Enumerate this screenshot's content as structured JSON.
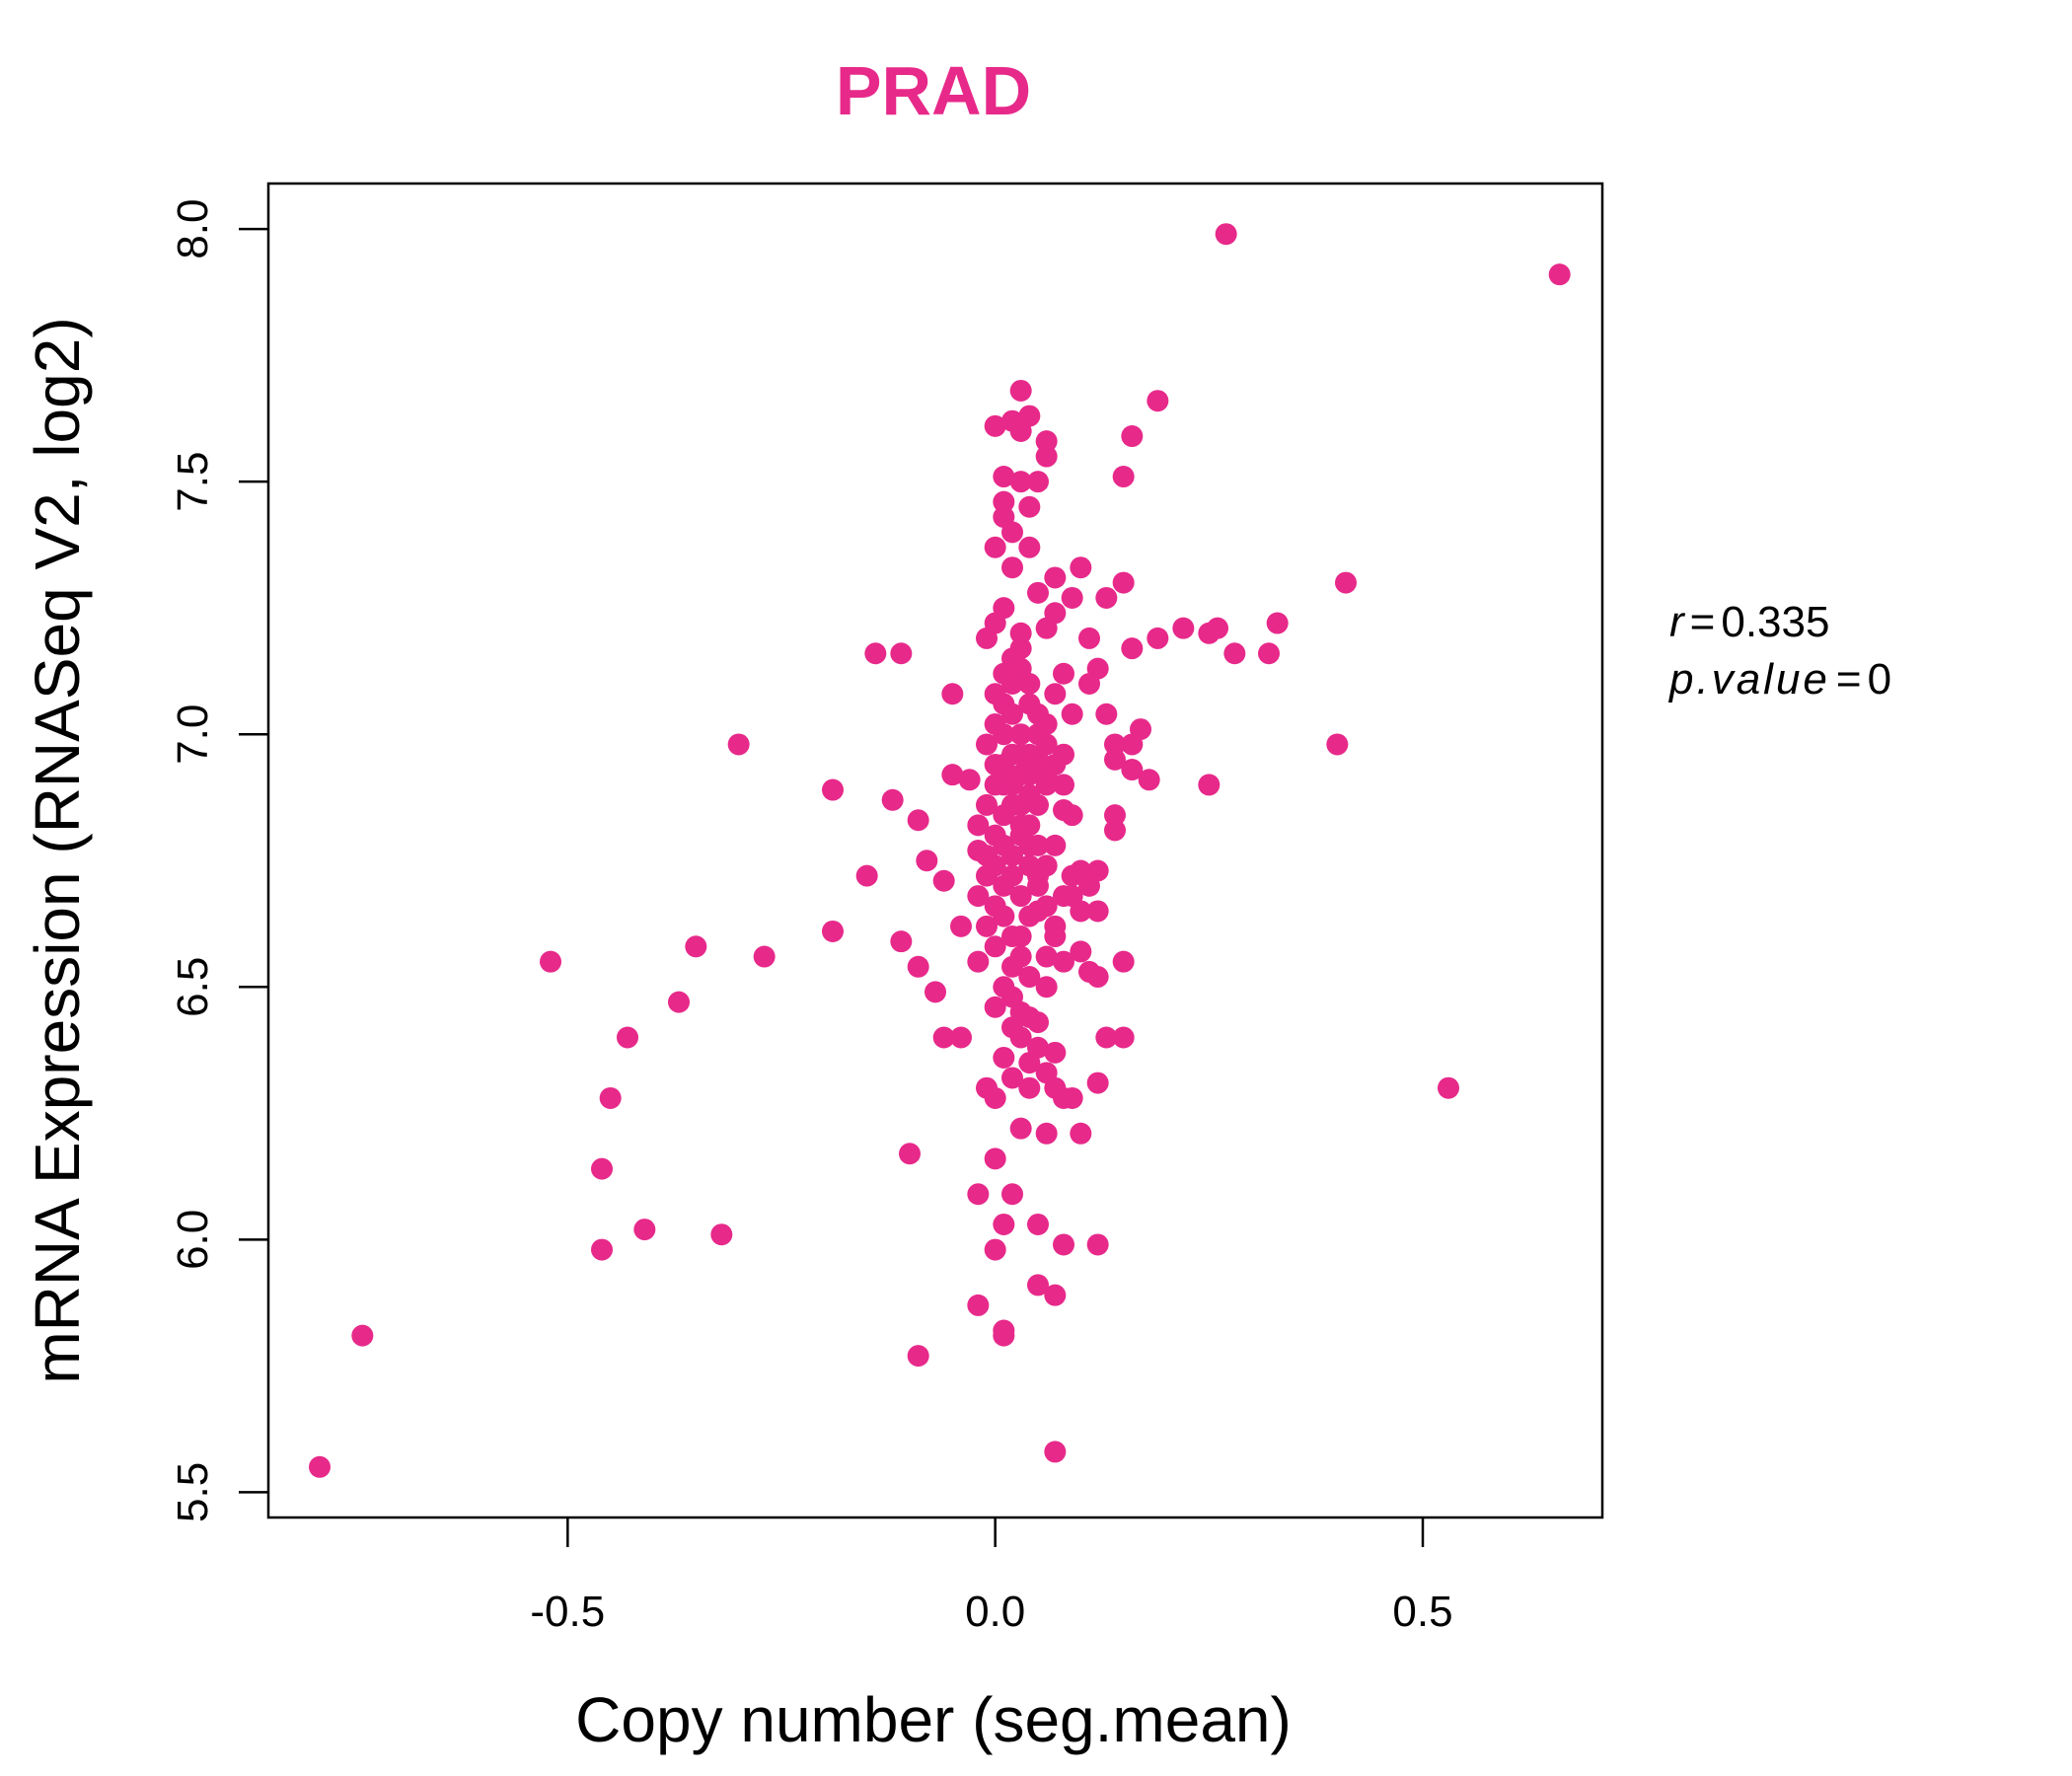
{
  "chart_data": {
    "type": "scatter",
    "title": "PRAD",
    "xlabel": "Copy number (seg.mean)",
    "ylabel": "mRNA Expression (RNASeq V2, log2)",
    "xlim": [
      -0.85,
      0.71
    ],
    "ylim": [
      5.45,
      8.09
    ],
    "x_ticks": [
      -0.5,
      0.0,
      0.5
    ],
    "x_tick_labels": [
      "-0.5",
      "0.0",
      "0.5"
    ],
    "y_ticks": [
      5.5,
      6.0,
      6.5,
      7.0,
      7.5,
      8.0
    ],
    "y_tick_labels": [
      "5.5",
      "6.0",
      "6.5",
      "7.0",
      "7.5",
      "8.0"
    ],
    "grid": false,
    "legend": "none",
    "point_color": "#e7298a",
    "stats": {
      "r_label": "r",
      "r_value": "0.335",
      "p_label": "p.value",
      "p_value": "0"
    },
    "points": [
      [
        -0.79,
        5.55
      ],
      [
        -0.74,
        5.81
      ],
      [
        -0.52,
        6.55
      ],
      [
        -0.46,
        5.98
      ],
      [
        -0.46,
        6.14
      ],
      [
        -0.45,
        6.28
      ],
      [
        -0.43,
        6.4
      ],
      [
        -0.41,
        6.02
      ],
      [
        -0.37,
        6.47
      ],
      [
        -0.35,
        6.58
      ],
      [
        -0.32,
        6.01
      ],
      [
        -0.3,
        6.98
      ],
      [
        -0.27,
        6.56
      ],
      [
        -0.19,
        6.89
      ],
      [
        -0.19,
        6.61
      ],
      [
        -0.15,
        6.72
      ],
      [
        -0.14,
        7.16
      ],
      [
        -0.11,
        7.16
      ],
      [
        -0.12,
        6.87
      ],
      [
        -0.11,
        6.59
      ],
      [
        -0.1,
        6.17
      ],
      [
        -0.09,
        5.77
      ],
      [
        -0.09,
        6.83
      ],
      [
        -0.09,
        6.54
      ],
      [
        -0.08,
        6.75
      ],
      [
        -0.07,
        6.49
      ],
      [
        -0.06,
        6.71
      ],
      [
        -0.05,
        6.92
      ],
      [
        -0.05,
        7.08
      ],
      [
        -0.06,
        6.4
      ],
      [
        -0.04,
        6.4
      ],
      [
        -0.04,
        6.62
      ],
      [
        -0.03,
        6.91
      ],
      [
        -0.02,
        6.77
      ],
      [
        -0.02,
        6.55
      ],
      [
        -0.02,
        6.09
      ],
      [
        -0.02,
        5.87
      ],
      [
        -0.01,
        7.19
      ],
      [
        -0.01,
        6.3
      ],
      [
        0.0,
        6.28
      ],
      [
        0.0,
        6.16
      ],
      [
        0.0,
        5.98
      ],
      [
        0.01,
        6.03
      ],
      [
        0.01,
        5.81
      ],
      [
        0.01,
        5.82
      ],
      [
        0.0,
        7.37
      ],
      [
        0.01,
        7.46
      ],
      [
        0.01,
        7.43
      ],
      [
        0.02,
        7.4
      ],
      [
        0.01,
        7.51
      ],
      [
        0.0,
        7.61
      ],
      [
        0.02,
        7.62
      ],
      [
        0.03,
        7.6
      ],
      [
        0.03,
        7.68
      ],
      [
        0.04,
        7.63
      ],
      [
        0.06,
        7.58
      ],
      [
        0.06,
        7.55
      ],
      [
        0.03,
        7.5
      ],
      [
        0.05,
        7.5
      ],
      [
        0.04,
        7.45
      ],
      [
        0.04,
        7.37
      ],
      [
        0.02,
        7.33
      ],
      [
        0.05,
        7.28
      ],
      [
        0.01,
        7.25
      ],
      [
        0.0,
        7.22
      ],
      [
        0.03,
        7.17
      ],
      [
        0.06,
        7.21
      ],
      [
        0.07,
        7.24
      ],
      [
        0.07,
        7.31
      ],
      [
        0.09,
        7.27
      ],
      [
        0.1,
        7.33
      ],
      [
        0.11,
        7.19
      ],
      [
        0.12,
        7.13
      ],
      [
        0.11,
        7.1
      ],
      [
        0.13,
        7.27
      ],
      [
        0.15,
        7.3
      ],
      [
        0.16,
        7.17
      ],
      [
        0.19,
        7.19
      ],
      [
        0.22,
        7.21
      ],
      [
        0.25,
        7.2
      ],
      [
        0.26,
        7.21
      ],
      [
        0.28,
        7.16
      ],
      [
        0.32,
        7.16
      ],
      [
        0.33,
        7.22
      ],
      [
        0.41,
        7.3
      ],
      [
        0.4,
        6.98
      ],
      [
        0.25,
        6.9
      ],
      [
        0.18,
        6.91
      ],
      [
        0.16,
        6.93
      ],
      [
        0.17,
        7.01
      ],
      [
        0.16,
        6.98
      ],
      [
        0.14,
        6.98
      ],
      [
        0.14,
        6.95
      ],
      [
        0.13,
        7.04
      ],
      [
        0.15,
        7.51
      ],
      [
        0.16,
        7.59
      ],
      [
        0.19,
        7.66
      ],
      [
        0.27,
        7.99
      ],
      [
        0.66,
        7.91
      ],
      [
        0.53,
        6.3
      ],
      [
        0.14,
        6.84
      ],
      [
        0.14,
        6.81
      ],
      [
        0.12,
        6.73
      ],
      [
        0.11,
        6.7
      ],
      [
        0.1,
        6.65
      ],
      [
        0.12,
        6.65
      ],
      [
        0.1,
        6.57
      ],
      [
        0.11,
        6.53
      ],
      [
        0.12,
        6.52
      ],
      [
        0.15,
        6.55
      ],
      [
        0.15,
        6.4
      ],
      [
        0.13,
        6.4
      ],
      [
        0.12,
        6.31
      ],
      [
        0.09,
        6.28
      ],
      [
        0.1,
        6.21
      ],
      [
        0.08,
        6.28
      ],
      [
        0.12,
        5.99
      ],
      [
        0.08,
        5.99
      ],
      [
        0.07,
        5.89
      ],
      [
        0.05,
        5.91
      ],
      [
        0.07,
        5.58
      ],
      [
        0.05,
        6.03
      ],
      [
        0.02,
        6.09
      ],
      [
        0.06,
        6.21
      ],
      [
        0.03,
        6.22
      ],
      [
        0.07,
        6.3
      ],
      [
        0.06,
        6.33
      ],
      [
        0.04,
        6.35
      ],
      [
        0.07,
        6.37
      ],
      [
        0.05,
        6.43
      ],
      [
        0.03,
        6.45
      ],
      [
        0.02,
        6.48
      ],
      [
        0.06,
        6.5
      ],
      [
        0.08,
        6.55
      ],
      [
        0.07,
        6.6
      ],
      [
        0.05,
        6.65
      ],
      [
        0.08,
        6.68
      ],
      [
        0.09,
        6.72
      ],
      [
        0.07,
        6.78
      ],
      [
        0.08,
        6.85
      ],
      [
        0.06,
        6.9
      ],
      [
        0.08,
        6.96
      ],
      [
        0.06,
        7.02
      ],
      [
        0.07,
        7.08
      ],
      [
        0.08,
        7.12
      ],
      [
        0.09,
        7.04
      ],
      [
        0.05,
        6.95
      ],
      [
        0.04,
        6.88
      ],
      [
        0.03,
        6.82
      ],
      [
        0.02,
        6.76
      ],
      [
        0.01,
        6.7
      ],
      [
        0.0,
        6.66
      ],
      [
        -0.01,
        6.62
      ],
      [
        0.0,
        6.58
      ],
      [
        0.02,
        6.54
      ],
      [
        0.03,
        6.6
      ],
      [
        0.04,
        6.64
      ],
      [
        0.05,
        6.7
      ],
      [
        0.04,
        6.74
      ],
      [
        0.03,
        6.8
      ],
      [
        0.02,
        6.86
      ],
      [
        0.01,
        6.9
      ],
      [
        0.0,
        6.94
      ],
      [
        -0.01,
        6.98
      ],
      [
        0.0,
        7.02
      ],
      [
        0.01,
        7.06
      ],
      [
        0.02,
        7.1
      ],
      [
        0.03,
        7.13
      ],
      [
        0.04,
        7.06
      ],
      [
        0.05,
        7.0
      ],
      [
        0.04,
        6.96
      ],
      [
        0.03,
        6.92
      ],
      [
        0.02,
        6.96
      ],
      [
        0.01,
        7.0
      ],
      [
        0.02,
        7.04
      ],
      [
        0.03,
        7.0
      ],
      [
        0.01,
        6.84
      ],
      [
        0.0,
        6.8
      ],
      [
        -0.01,
        6.76
      ],
      [
        -0.02,
        6.82
      ],
      [
        -0.01,
        6.86
      ],
      [
        0.0,
        6.9
      ],
      [
        0.01,
        6.94
      ],
      [
        0.02,
        6.9
      ],
      [
        0.03,
        6.86
      ],
      [
        0.04,
        6.82
      ],
      [
        0.05,
        6.78
      ],
      [
        0.06,
        6.74
      ],
      [
        0.05,
        6.86
      ],
      [
        0.06,
        6.92
      ],
      [
        0.02,
        6.72
      ],
      [
        0.03,
        6.68
      ],
      [
        0.01,
        6.64
      ],
      [
        0.02,
        6.6
      ],
      [
        0.03,
        6.56
      ],
      [
        0.04,
        6.52
      ],
      [
        0.01,
        6.5
      ],
      [
        0.0,
        6.46
      ],
      [
        0.02,
        6.42
      ],
      [
        0.03,
        6.4
      ],
      [
        0.01,
        6.36
      ],
      [
        0.04,
        6.44
      ],
      [
        0.05,
        6.38
      ],
      [
        0.02,
        6.32
      ],
      [
        0.04,
        6.3
      ],
      [
        -0.01,
        6.72
      ],
      [
        -0.02,
        6.68
      ],
      [
        0.0,
        6.74
      ],
      [
        0.01,
        6.78
      ],
      [
        0.04,
        6.92
      ],
      [
        0.05,
        7.04
      ],
      [
        0.06,
        6.98
      ],
      [
        0.07,
        6.94
      ],
      [
        0.08,
        6.9
      ],
      [
        0.09,
        6.84
      ],
      [
        0.02,
        7.15
      ],
      [
        0.03,
        7.2
      ],
      [
        0.01,
        7.12
      ],
      [
        0.0,
        7.08
      ],
      [
        0.04,
        7.1
      ],
      [
        0.06,
        6.66
      ],
      [
        0.07,
        6.62
      ],
      [
        0.09,
        6.68
      ],
      [
        0.1,
        6.73
      ],
      [
        0.06,
        6.56
      ],
      [
        0.03,
        6.96
      ],
      [
        0.02,
        6.86
      ],
      [
        0.01,
        6.92
      ],
      [
        0.04,
        6.78
      ],
      [
        0.05,
        6.72
      ]
    ]
  }
}
